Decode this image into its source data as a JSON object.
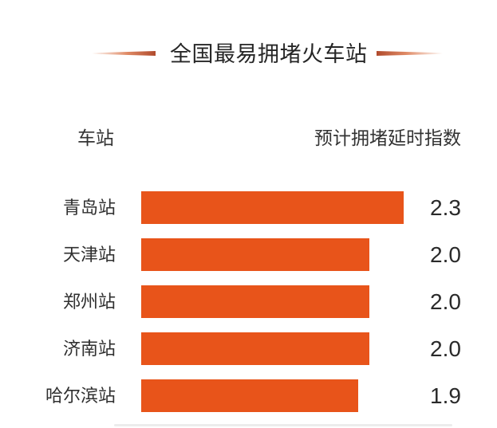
{
  "chart_data": {
    "type": "bar",
    "orientation": "horizontal",
    "title": "全国最易拥堵火车站",
    "col_station": "车站",
    "col_value": "预计拥堵延时指数",
    "rows": [
      {
        "label": "青岛站",
        "value": 2.3,
        "value_text": "2.3"
      },
      {
        "label": "天津站",
        "value": 2.0,
        "value_text": "2.0"
      },
      {
        "label": "郑州站",
        "value": 2.0,
        "value_text": "2.0"
      },
      {
        "label": "济南站",
        "value": 2.0,
        "value_text": "2.0"
      },
      {
        "label": "哈尔滨站",
        "value": 1.9,
        "value_text": "1.9"
      }
    ],
    "xlim": [
      0,
      2.5
    ],
    "legend": "none",
    "grid": false,
    "bar_color": "#E8541A",
    "accent_color": "#B04A2C",
    "text_color": "#2E2E2E"
  }
}
